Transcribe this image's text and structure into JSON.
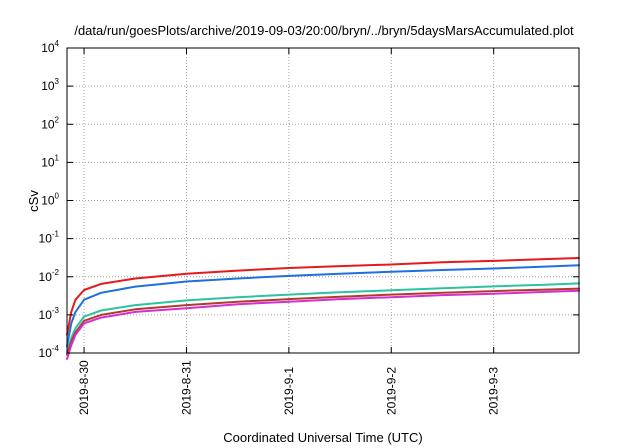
{
  "chart_data": {
    "type": "line",
    "title": "/data/run/goesPlots/archive/2019-09-03/20:00/bryn/../bryn/5daysMarsAccumulated.plot",
    "xlabel": "Coordinated Universal Time (UTC)",
    "ylabel": "cSv",
    "y_scale": "log",
    "ylim": [
      0.0001,
      10000
    ],
    "y_ticks": [
      {
        "base": "10",
        "exp": "-4",
        "value": 0.0001
      },
      {
        "base": "10",
        "exp": "-3",
        "value": 0.001
      },
      {
        "base": "10",
        "exp": "-2",
        "value": 0.01
      },
      {
        "base": "10",
        "exp": "-1",
        "value": 0.1
      },
      {
        "base": "10",
        "exp": "0",
        "value": 1
      },
      {
        "base": "10",
        "exp": "1",
        "value": 10
      },
      {
        "base": "10",
        "exp": "2",
        "value": 100
      },
      {
        "base": "10",
        "exp": "3",
        "value": 1000
      },
      {
        "base": "10",
        "exp": "4",
        "value": 10000
      }
    ],
    "xlim": [
      "2019-08-29T20:00",
      "2019-09-03T20:00"
    ],
    "x_ticks": [
      {
        "label": "2019-8-30",
        "value": "2019-08-30T00:00"
      },
      {
        "label": "2019-8-31",
        "value": "2019-08-31T00:00"
      },
      {
        "label": "2019-9-1",
        "value": "2019-09-01T00:00"
      },
      {
        "label": "2019-9-2",
        "value": "2019-09-02T00:00"
      },
      {
        "label": "2019-9-3",
        "value": "2019-09-03T00:00"
      }
    ],
    "grid": true,
    "legend": "none",
    "x": [
      "2019-08-29T20:00",
      "2019-08-29T21:00",
      "2019-08-29T22:00",
      "2019-08-30T00:00",
      "2019-08-30T04:00",
      "2019-08-30T12:00",
      "2019-08-31T00:00",
      "2019-08-31T12:00",
      "2019-09-01T00:00",
      "2019-09-01T12:00",
      "2019-09-02T00:00",
      "2019-09-02T12:00",
      "2019-09-03T00:00",
      "2019-09-03T12:00",
      "2019-09-03T20:00"
    ],
    "series": [
      {
        "color": "#e41a1c",
        "values": [
          0.0003,
          0.0012,
          0.0025,
          0.0045,
          0.0065,
          0.009,
          0.012,
          0.0145,
          0.017,
          0.019,
          0.021,
          0.024,
          0.026,
          0.029,
          0.031
        ]
      },
      {
        "color": "#1f6fe0",
        "values": [
          0.00015,
          0.0006,
          0.0012,
          0.0025,
          0.0038,
          0.0055,
          0.0075,
          0.009,
          0.0105,
          0.012,
          0.0135,
          0.015,
          0.0165,
          0.0185,
          0.02
        ]
      },
      {
        "color": "#2bc4a0",
        "values": [
          0.0001,
          0.00025,
          0.00045,
          0.0009,
          0.0013,
          0.0018,
          0.0024,
          0.0029,
          0.0034,
          0.0039,
          0.0044,
          0.005,
          0.0056,
          0.0062,
          0.0067
        ]
      },
      {
        "color": "#b03a2e",
        "values": [
          9e-05,
          0.0002,
          0.00035,
          0.0007,
          0.001,
          0.0014,
          0.0018,
          0.0022,
          0.0026,
          0.003,
          0.0034,
          0.0038,
          0.0042,
          0.0046,
          0.0049
        ]
      },
      {
        "color": "#d42fd0",
        "values": [
          7e-05,
          0.00016,
          0.0003,
          0.0006,
          0.00085,
          0.0012,
          0.0015,
          0.0019,
          0.0022,
          0.0026,
          0.0029,
          0.0033,
          0.0036,
          0.004,
          0.0043
        ]
      }
    ]
  }
}
